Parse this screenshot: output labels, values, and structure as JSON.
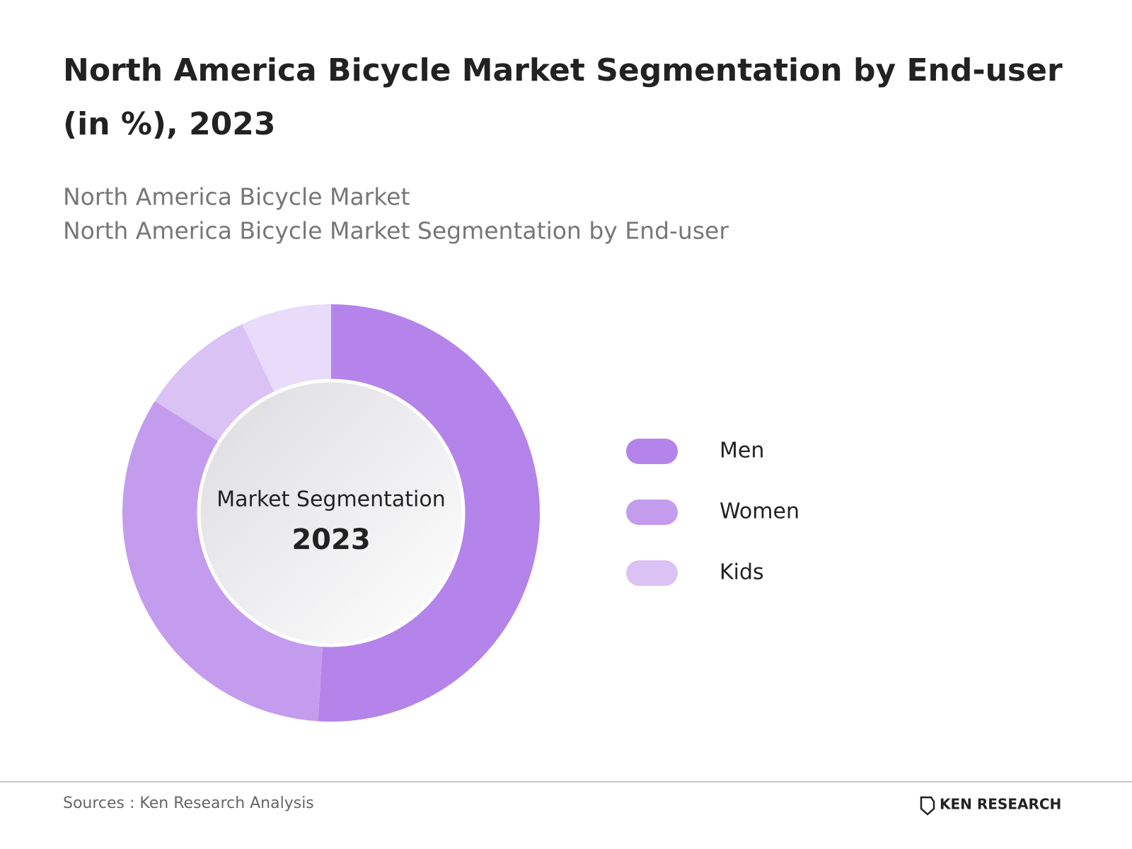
{
  "chart_data": {
    "type": "donut",
    "title": "North America Bicycle Market Segmentation by End-user (in %), 2023",
    "subtitle_lines": [
      "North America Bicycle Market",
      "North America Bicycle Market Segmentation by End-user"
    ],
    "center_label": "Market Segmentation",
    "center_year": "2023",
    "categories": [
      "Men",
      "Women",
      "Kids",
      null
    ],
    "values": [
      51,
      33,
      9,
      7
    ],
    "colors": [
      "#b484ea",
      "#c49cee",
      "#dbc2f5",
      "#e9dbfa"
    ],
    "source": "Sources : Ken Research Analysis",
    "brand": "KEN RESEARCH"
  }
}
